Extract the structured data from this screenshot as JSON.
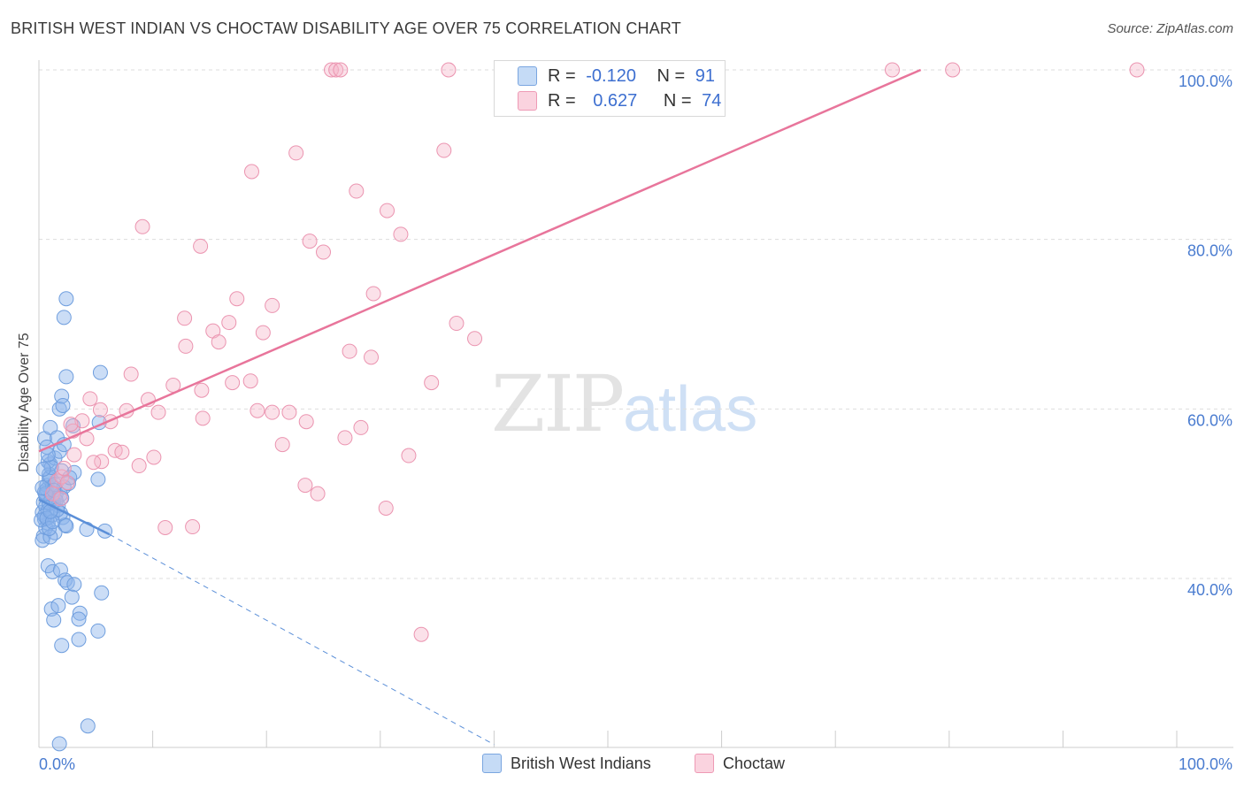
{
  "title": "BRITISH WEST INDIAN VS CHOCTAW DISABILITY AGE OVER 75 CORRELATION CHART",
  "source": "Source: ZipAtlas.com",
  "watermark": {
    "zip": "ZIP",
    "atlas": "atlas"
  },
  "legend_top": [
    {
      "r_label": "R =",
      "r_value": "-0.120",
      "n_label": "N =",
      "n_value": "91",
      "color": "#a9c8f0"
    },
    {
      "r_label": "R =",
      "r_value": "0.627",
      "n_label": "N =",
      "n_value": "74",
      "color": "#f6bccd"
    }
  ],
  "legend_bottom": [
    {
      "label": "British West Indians",
      "color": "#a9c8f0"
    },
    {
      "label": "Choctaw",
      "color": "#f6bccd"
    }
  ],
  "chart_data": {
    "type": "scatter",
    "title": "BRITISH WEST INDIAN VS CHOCTAW DISABILITY AGE OVER 75 CORRELATION CHART",
    "xlabel": "",
    "ylabel": "Disability Age Over 75",
    "xlim": [
      0,
      105
    ],
    "ylim": [
      20,
      102
    ],
    "x_tick_labels": [
      "0.0%",
      "100.0%"
    ],
    "y_tick_labels": [
      "40.0%",
      "60.0%",
      "80.0%",
      "100.0%"
    ],
    "y_ticks": [
      40,
      60,
      80,
      100
    ],
    "colors": {
      "British West Indians": "#5b8fd8",
      "Choctaw": "#e8759b"
    },
    "series": [
      {
        "name": "British West Indians",
        "trend": {
          "x0": 0,
          "y0": 49.3,
          "x1": 6.2,
          "y1": 45.2,
          "dashed_to_x": 40,
          "dashed_to_y": 20.4
        },
        "points": [
          [
            0.3,
            47.8
          ],
          [
            0.4,
            49.0
          ],
          [
            0.5,
            50.2
          ],
          [
            0.6,
            48.5
          ],
          [
            0.7,
            51.0
          ],
          [
            0.8,
            46.5
          ],
          [
            0.9,
            52.3
          ],
          [
            1.0,
            53.5
          ],
          [
            0.4,
            45.0
          ],
          [
            0.5,
            47.0
          ],
          [
            0.6,
            49.8
          ],
          [
            0.7,
            50.5
          ],
          [
            0.8,
            48.0
          ],
          [
            0.9,
            51.8
          ],
          [
            1.1,
            49.4
          ],
          [
            1.2,
            50.9
          ],
          [
            0.3,
            44.5
          ],
          [
            0.6,
            46.0
          ],
          [
            0.8,
            53.8
          ],
          [
            1.0,
            52.0
          ],
          [
            1.2,
            47.5
          ],
          [
            1.3,
            49.0
          ],
          [
            1.4,
            54.2
          ],
          [
            1.5,
            50.0
          ],
          [
            1.6,
            51.5
          ],
          [
            1.7,
            48.6
          ],
          [
            1.8,
            55.0
          ],
          [
            1.9,
            49.9
          ],
          [
            2.0,
            52.7
          ],
          [
            2.1,
            47.2
          ],
          [
            2.2,
            50.8
          ],
          [
            2.3,
            46.3
          ],
          [
            0.5,
            56.5
          ],
          [
            0.7,
            55.5
          ],
          [
            1.0,
            57.8
          ],
          [
            1.6,
            56.6
          ],
          [
            2.2,
            55.8
          ],
          [
            2.6,
            51.2
          ],
          [
            3.0,
            58.0
          ],
          [
            3.1,
            52.5
          ],
          [
            1.8,
            60.0
          ],
          [
            2.0,
            61.5
          ],
          [
            2.1,
            60.4
          ],
          [
            2.4,
            63.8
          ],
          [
            5.4,
            64.3
          ],
          [
            5.3,
            58.4
          ],
          [
            5.2,
            51.7
          ],
          [
            5.8,
            45.6
          ],
          [
            4.2,
            45.8
          ],
          [
            2.4,
            46.2
          ],
          [
            1.4,
            45.4
          ],
          [
            1.0,
            44.9
          ],
          [
            0.8,
            41.5
          ],
          [
            1.2,
            40.8
          ],
          [
            1.9,
            41.0
          ],
          [
            2.3,
            39.8
          ],
          [
            2.5,
            39.5
          ],
          [
            3.1,
            39.3
          ],
          [
            5.5,
            38.3
          ],
          [
            2.9,
            37.8
          ],
          [
            1.1,
            36.4
          ],
          [
            1.7,
            36.8
          ],
          [
            3.6,
            35.9
          ],
          [
            3.5,
            35.2
          ],
          [
            1.3,
            35.1
          ],
          [
            5.2,
            33.8
          ],
          [
            3.5,
            32.8
          ],
          [
            2.0,
            32.1
          ],
          [
            2.4,
            73.0
          ],
          [
            2.2,
            70.8
          ],
          [
            0.5,
            47.4
          ],
          [
            0.9,
            48.9
          ],
          [
            1.5,
            49.2
          ],
          [
            0.2,
            46.9
          ],
          [
            0.6,
            50.0
          ],
          [
            1.1,
            53.1
          ],
          [
            1.4,
            51.1
          ],
          [
            0.7,
            47.1
          ],
          [
            2.7,
            51.9
          ],
          [
            1.9,
            47.7
          ],
          [
            1.3,
            50.4
          ],
          [
            0.9,
            45.9
          ],
          [
            0.4,
            52.9
          ],
          [
            1.6,
            48.1
          ],
          [
            0.3,
            50.7
          ],
          [
            1.2,
            46.7
          ],
          [
            2.0,
            49.5
          ],
          [
            4.3,
            22.6
          ],
          [
            1.8,
            20.5
          ],
          [
            0.8,
            54.6
          ],
          [
            1.0,
            47.9
          ]
        ]
      },
      {
        "name": "Choctaw",
        "trend": {
          "x0": 0,
          "y0": 55.0,
          "x1": 77.5,
          "y1": 100.0
        },
        "points": [
          [
            25.7,
            100
          ],
          [
            26.1,
            100
          ],
          [
            26.5,
            100
          ],
          [
            36.0,
            100
          ],
          [
            75.0,
            100
          ],
          [
            80.3,
            100
          ],
          [
            96.5,
            100
          ],
          [
            22.6,
            90.2
          ],
          [
            35.6,
            90.5
          ],
          [
            18.7,
            88.0
          ],
          [
            27.9,
            85.7
          ],
          [
            30.6,
            83.4
          ],
          [
            9.1,
            81.5
          ],
          [
            31.8,
            80.6
          ],
          [
            14.2,
            79.2
          ],
          [
            23.8,
            79.8
          ],
          [
            25.0,
            78.5
          ],
          [
            29.4,
            73.6
          ],
          [
            17.4,
            73.0
          ],
          [
            20.5,
            72.2
          ],
          [
            12.8,
            70.7
          ],
          [
            16.7,
            70.2
          ],
          [
            15.3,
            69.2
          ],
          [
            19.7,
            69.0
          ],
          [
            36.7,
            70.1
          ],
          [
            38.3,
            68.3
          ],
          [
            15.8,
            67.9
          ],
          [
            12.9,
            67.4
          ],
          [
            27.3,
            66.8
          ],
          [
            29.2,
            66.1
          ],
          [
            8.1,
            64.1
          ],
          [
            11.8,
            62.8
          ],
          [
            14.3,
            62.2
          ],
          [
            17.0,
            63.1
          ],
          [
            18.6,
            63.3
          ],
          [
            34.5,
            63.1
          ],
          [
            4.5,
            61.2
          ],
          [
            9.6,
            61.1
          ],
          [
            5.4,
            59.9
          ],
          [
            7.7,
            59.8
          ],
          [
            10.5,
            59.6
          ],
          [
            19.2,
            59.8
          ],
          [
            20.5,
            59.6
          ],
          [
            22.0,
            59.6
          ],
          [
            23.5,
            58.5
          ],
          [
            14.4,
            58.9
          ],
          [
            3.8,
            58.6
          ],
          [
            6.3,
            58.5
          ],
          [
            28.3,
            57.8
          ],
          [
            4.2,
            56.5
          ],
          [
            21.4,
            55.8
          ],
          [
            26.9,
            56.6
          ],
          [
            6.7,
            55.1
          ],
          [
            7.3,
            54.9
          ],
          [
            10.1,
            54.3
          ],
          [
            3.1,
            54.6
          ],
          [
            5.5,
            53.8
          ],
          [
            8.8,
            53.3
          ],
          [
            32.5,
            54.5
          ],
          [
            1.6,
            51.5
          ],
          [
            2.0,
            52.0
          ],
          [
            2.5,
            51.3
          ],
          [
            23.4,
            51.0
          ],
          [
            24.5,
            50.0
          ],
          [
            30.5,
            48.3
          ],
          [
            11.1,
            46.0
          ],
          [
            13.5,
            46.1
          ],
          [
            33.6,
            33.4
          ],
          [
            1.2,
            50.0
          ],
          [
            3.0,
            57.4
          ],
          [
            2.2,
            53.0
          ],
          [
            1.9,
            49.4
          ],
          [
            4.8,
            53.7
          ],
          [
            2.8,
            58.2
          ]
        ]
      }
    ]
  }
}
